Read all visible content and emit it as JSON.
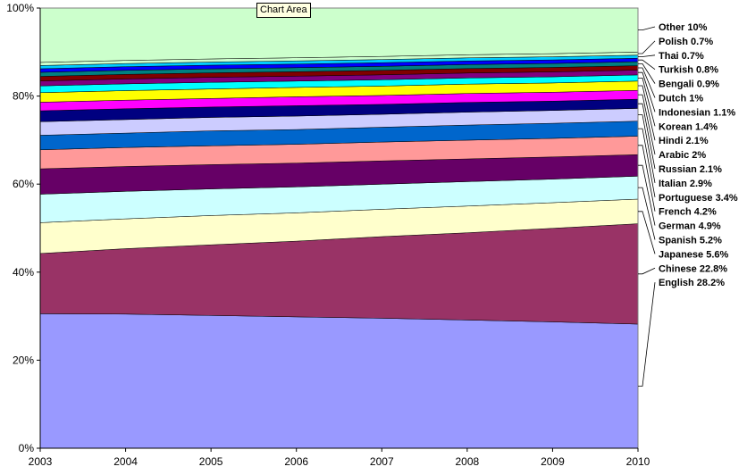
{
  "tooltip": "Chart Area",
  "chart_data": {
    "type": "area",
    "stacked_percent": true,
    "x": [
      "2003",
      "2004",
      "2005",
      "2006",
      "2007",
      "2008",
      "2009",
      "2010"
    ],
    "ylim": [
      0,
      100
    ],
    "y_ticks": [
      "0%",
      "20%",
      "40%",
      "60%",
      "80%",
      "100%"
    ],
    "series": [
      {
        "name": "English",
        "label": "English 28.2%",
        "color": "#9999ff",
        "values": [
          29.7,
          29.7,
          29.5,
          29.3,
          29.0,
          28.8,
          28.5,
          28.2
        ]
      },
      {
        "name": "Chinese",
        "label": "Chinese 22.8%",
        "color": "#993366",
        "values": [
          13.3,
          14.5,
          15.7,
          16.9,
          18.2,
          19.6,
          21.1,
          22.8
        ]
      },
      {
        "name": "Japanese",
        "label": "Japanese 5.6%",
        "color": "#ffffcc",
        "values": [
          6.8,
          6.6,
          6.5,
          6.3,
          6.1,
          6.0,
          5.8,
          5.6
        ]
      },
      {
        "name": "Spanish",
        "label": "Spanish 5.2%",
        "color": "#ccffff",
        "values": [
          6.3,
          6.1,
          5.9,
          5.8,
          5.6,
          5.5,
          5.3,
          5.2
        ]
      },
      {
        "name": "German",
        "label": "German 4.9%",
        "color": "#660066",
        "values": [
          5.6,
          5.5,
          5.4,
          5.3,
          5.2,
          5.1,
          5.0,
          4.9
        ]
      },
      {
        "name": "French",
        "label": "French 4.2%",
        "color": "#ff9999",
        "values": [
          4.2,
          4.2,
          4.2,
          4.2,
          4.2,
          4.2,
          4.2,
          4.2
        ]
      },
      {
        "name": "Portuguese",
        "label": "Portuguese 3.4%",
        "color": "#0066cc",
        "values": [
          3.2,
          3.2,
          3.3,
          3.3,
          3.3,
          3.4,
          3.4,
          3.4
        ]
      },
      {
        "name": "Italian",
        "label": "Italian 2.9%",
        "color": "#ccccff",
        "values": [
          3.0,
          3.0,
          3.0,
          3.0,
          2.9,
          2.9,
          2.9,
          2.9
        ]
      },
      {
        "name": "Russian",
        "label": "Russian 2.1%",
        "color": "#000080",
        "values": [
          2.4,
          2.4,
          2.3,
          2.3,
          2.2,
          2.2,
          2.1,
          2.1
        ]
      },
      {
        "name": "Arabic",
        "label": "Arabic 2%",
        "color": "#ff00ff",
        "values": [
          1.9,
          1.9,
          1.9,
          2.0,
          2.0,
          2.0,
          2.0,
          2.0
        ]
      },
      {
        "name": "Hindi",
        "label": "Hindi 2.1%",
        "color": "#ffff00",
        "values": [
          2.1,
          2.1,
          2.1,
          2.1,
          2.1,
          2.1,
          2.1,
          2.1
        ]
      },
      {
        "name": "Korean",
        "label": "Korean 1.4%",
        "color": "#00ffff",
        "values": [
          1.5,
          1.5,
          1.5,
          1.4,
          1.4,
          1.4,
          1.4,
          1.4
        ]
      },
      {
        "name": "Indonesian",
        "label": "Indonesian 1.1%",
        "color": "#800080",
        "values": [
          1.1,
          1.1,
          1.1,
          1.1,
          1.1,
          1.1,
          1.1,
          1.1
        ]
      },
      {
        "name": "Dutch",
        "label": "Dutch 1%",
        "color": "#800000",
        "values": [
          1.0,
          1.0,
          1.0,
          1.0,
          1.0,
          1.0,
          1.0,
          1.0
        ]
      },
      {
        "name": "Bengali",
        "label": "Bengali 0.9%",
        "color": "#008080",
        "values": [
          0.9,
          0.9,
          0.9,
          0.9,
          0.9,
          0.9,
          0.9,
          0.9
        ]
      },
      {
        "name": "Turkish",
        "label": "Turkish 0.8%",
        "color": "#0000ff",
        "values": [
          0.8,
          0.8,
          0.8,
          0.8,
          0.8,
          0.8,
          0.8,
          0.8
        ]
      },
      {
        "name": "Thai",
        "label": "Thai 0.7%",
        "color": "#00ccff",
        "values": [
          0.7,
          0.7,
          0.7,
          0.7,
          0.7,
          0.7,
          0.7,
          0.7
        ]
      },
      {
        "name": "Polish",
        "label": "Polish 0.7%",
        "color": "#ccffcc",
        "values": [
          0.7,
          0.7,
          0.7,
          0.7,
          0.7,
          0.7,
          0.7,
          0.7
        ]
      },
      {
        "name": "Other",
        "label": "Other 10%",
        "color": "#ccffcc",
        "values": [
          12.0,
          11.6,
          11.3,
          11.1,
          10.8,
          10.5,
          10.3,
          10.0
        ]
      }
    ]
  }
}
